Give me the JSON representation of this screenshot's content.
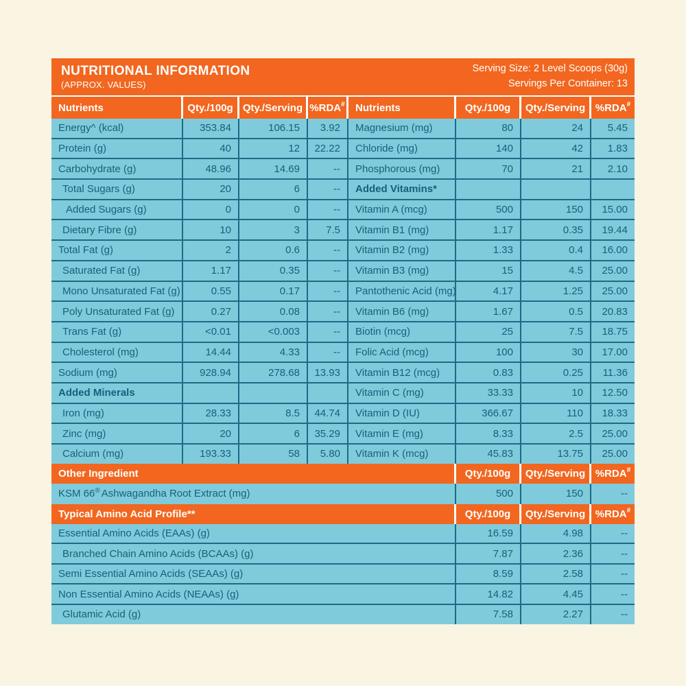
{
  "header": {
    "title": "NUTRITIONAL INFORMATION",
    "subtitle": "(APPROX. VALUES)",
    "serving_size": "Serving Size: 2 Level Scoops (30g)",
    "servings_per_container": "Servings Per Container: 13"
  },
  "columns": {
    "nutrients": "Nutrients",
    "qty_100g": "Qty./100g",
    "qty_serving": "Qty./Serving",
    "rda": "%RDA",
    "rda_sup": "#"
  },
  "colors": {
    "orange": "#F2661F",
    "cell_blue": "#7FCBDC",
    "grid_teal": "#1C6B86",
    "text_teal": "#17607B",
    "background_cream": "#FAF4E3",
    "header_text": "#FFFFFF"
  },
  "main_table": {
    "left_rows": [
      {
        "name": "Energy^ (kcal)",
        "indent": 0,
        "bold": false,
        "qty_100g": "353.84",
        "qty_serving": "106.15",
        "rda": "3.92"
      },
      {
        "name": "Protein (g)",
        "indent": 0,
        "bold": false,
        "qty_100g": "40",
        "qty_serving": "12",
        "rda": "22.22"
      },
      {
        "name": "Carbohydrate (g)",
        "indent": 0,
        "bold": false,
        "qty_100g": "48.96",
        "qty_serving": "14.69",
        "rda": "--"
      },
      {
        "name": "Total Sugars (g)",
        "indent": 1,
        "bold": false,
        "qty_100g": "20",
        "qty_serving": "6",
        "rda": "--"
      },
      {
        "name": "Added Sugars (g)",
        "indent": 2,
        "bold": false,
        "qty_100g": "0",
        "qty_serving": "0",
        "rda": "--"
      },
      {
        "name": "Dietary Fibre (g)",
        "indent": 1,
        "bold": false,
        "qty_100g": "10",
        "qty_serving": "3",
        "rda": "7.5"
      },
      {
        "name": "Total Fat (g)",
        "indent": 0,
        "bold": false,
        "qty_100g": "2",
        "qty_serving": "0.6",
        "rda": "--"
      },
      {
        "name": "Saturated Fat (g)",
        "indent": 1,
        "bold": false,
        "qty_100g": "1.17",
        "qty_serving": "0.35",
        "rda": "--"
      },
      {
        "name": "Mono Unsaturated Fat (g)",
        "indent": 1,
        "bold": false,
        "qty_100g": "0.55",
        "qty_serving": "0.17",
        "rda": "--"
      },
      {
        "name": "Poly Unsaturated Fat (g)",
        "indent": 1,
        "bold": false,
        "qty_100g": "0.27",
        "qty_serving": "0.08",
        "rda": "--"
      },
      {
        "name": "Trans Fat (g)",
        "indent": 1,
        "bold": false,
        "qty_100g": "<0.01",
        "qty_serving": "<0.003",
        "rda": "--"
      },
      {
        "name": "Cholesterol (mg)",
        "indent": 1,
        "bold": false,
        "qty_100g": "14.44",
        "qty_serving": "4.33",
        "rda": "--"
      },
      {
        "name": "Sodium (mg)",
        "indent": 0,
        "bold": false,
        "qty_100g": "928.94",
        "qty_serving": "278.68",
        "rda": "13.93"
      },
      {
        "name": "Added Minerals",
        "indent": 0,
        "bold": true,
        "qty_100g": "",
        "qty_serving": "",
        "rda": ""
      },
      {
        "name": "Iron (mg)",
        "indent": 1,
        "bold": false,
        "qty_100g": "28.33",
        "qty_serving": "8.5",
        "rda": "44.74"
      },
      {
        "name": "Zinc (mg)",
        "indent": 1,
        "bold": false,
        "qty_100g": "20",
        "qty_serving": "6",
        "rda": "35.29"
      },
      {
        "name": "Calcium (mg)",
        "indent": 1,
        "bold": false,
        "qty_100g": "193.33",
        "qty_serving": "58",
        "rda": "5.80"
      }
    ],
    "right_rows": [
      {
        "name": "Magnesium (mg)",
        "indent": 0,
        "bold": false,
        "qty_100g": "80",
        "qty_serving": "24",
        "rda": "5.45"
      },
      {
        "name": "Chloride (mg)",
        "indent": 0,
        "bold": false,
        "qty_100g": "140",
        "qty_serving": "42",
        "rda": "1.83"
      },
      {
        "name": "Phosphorous (mg)",
        "indent": 0,
        "bold": false,
        "qty_100g": "70",
        "qty_serving": "21",
        "rda": "2.10"
      },
      {
        "name": "Added Vitamins*",
        "indent": 0,
        "bold": true,
        "qty_100g": "",
        "qty_serving": "",
        "rda": ""
      },
      {
        "name": "Vitamin A (mcg)",
        "indent": 0,
        "bold": false,
        "qty_100g": "500",
        "qty_serving": "150",
        "rda": "15.00"
      },
      {
        "name": "Vitamin B1 (mg)",
        "indent": 0,
        "bold": false,
        "qty_100g": "1.17",
        "qty_serving": "0.35",
        "rda": "19.44"
      },
      {
        "name": "Vitamin B2 (mg)",
        "indent": 0,
        "bold": false,
        "qty_100g": "1.33",
        "qty_serving": "0.4",
        "rda": "16.00"
      },
      {
        "name": "Vitamin B3 (mg)",
        "indent": 0,
        "bold": false,
        "qty_100g": "15",
        "qty_serving": "4.5",
        "rda": "25.00"
      },
      {
        "name": "Pantothenic Acid (mg)",
        "indent": 0,
        "bold": false,
        "qty_100g": "4.17",
        "qty_serving": "1.25",
        "rda": "25.00"
      },
      {
        "name": "Vitamin B6 (mg)",
        "indent": 0,
        "bold": false,
        "qty_100g": "1.67",
        "qty_serving": "0.5",
        "rda": "20.83"
      },
      {
        "name": "Biotin (mcg)",
        "indent": 0,
        "bold": false,
        "qty_100g": "25",
        "qty_serving": "7.5",
        "rda": "18.75"
      },
      {
        "name": "Folic Acid (mcg)",
        "indent": 0,
        "bold": false,
        "qty_100g": "100",
        "qty_serving": "30",
        "rda": "17.00"
      },
      {
        "name": "Vitamin B12 (mcg)",
        "indent": 0,
        "bold": false,
        "qty_100g": "0.83",
        "qty_serving": "0.25",
        "rda": "11.36"
      },
      {
        "name": "Vitamin C (mg)",
        "indent": 0,
        "bold": false,
        "qty_100g": "33.33",
        "qty_serving": "10",
        "rda": "12.50"
      },
      {
        "name": "Vitamin D (IU)",
        "indent": 0,
        "bold": false,
        "qty_100g": "366.67",
        "qty_serving": "110",
        "rda": "18.33"
      },
      {
        "name": "Vitamin E (mg)",
        "indent": 0,
        "bold": false,
        "qty_100g": "8.33",
        "qty_serving": "2.5",
        "rda": "25.00"
      },
      {
        "name": "Vitamin K (mcg)",
        "indent": 0,
        "bold": false,
        "qty_100g": "45.83",
        "qty_serving": "13.75",
        "rda": "25.00"
      }
    ]
  },
  "other_ingredient": {
    "header": "Other Ingredient",
    "row": {
      "name_pre": "KSM 66",
      "name_sup": "®",
      "name_post": "Ashwagandha Root Extract (mg)",
      "qty_100g": "500",
      "qty_serving": "150",
      "rda": "--"
    }
  },
  "amino_profile": {
    "header": "Typical Amino Acid Profile**",
    "rows": [
      {
        "name": "Essential Amino Acids (EAAs) (g)",
        "indent": 0,
        "qty_100g": "16.59",
        "qty_serving": "4.98",
        "rda": "--"
      },
      {
        "name": "Branched Chain Amino Acids (BCAAs) (g)",
        "indent": 1,
        "qty_100g": "7.87",
        "qty_serving": "2.36",
        "rda": "--"
      },
      {
        "name": "Semi Essential Amino Acids (SEAAs) (g)",
        "indent": 0,
        "qty_100g": "8.59",
        "qty_serving": "2.58",
        "rda": "--"
      },
      {
        "name": "Non Essential Amino Acids (NEAAs) (g)",
        "indent": 0,
        "qty_100g": "14.82",
        "qty_serving": "4.45",
        "rda": "--"
      },
      {
        "name": "Glutamic Acid (g)",
        "indent": 1,
        "qty_100g": "7.58",
        "qty_serving": "2.27",
        "rda": "--"
      }
    ]
  }
}
